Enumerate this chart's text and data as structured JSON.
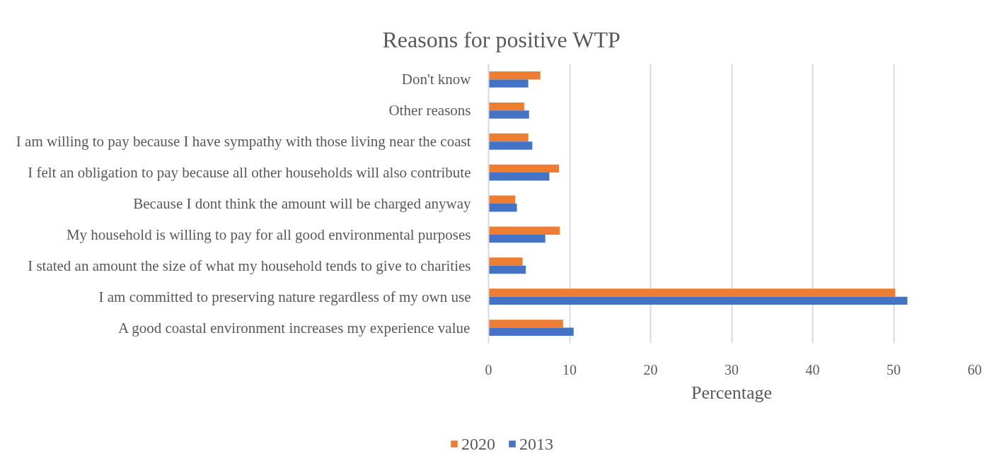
{
  "chart_data": {
    "type": "bar",
    "orientation": "horizontal",
    "title": "Reasons for positive WTP",
    "xlabel": "Percentage",
    "categories": [
      "Don't know",
      "Other reasons",
      "I am willing to pay because I have sympathy with those living near the coast",
      "I felt an obligation to pay because all other households will also contribute",
      "Because I dont think the amount will be charged anyway",
      "My household is willing to pay for all good environmental purposes",
      "I stated an amount the size of what my household tends to give to charities",
      "I am committed to preserving nature regardless of my own use",
      "A good coastal environment increases my experience value"
    ],
    "series": [
      {
        "name": "2020",
        "color": "#ed7d31",
        "values": [
          6.4,
          4.4,
          4.9,
          8.7,
          3.3,
          8.8,
          4.2,
          50.2,
          9.2
        ]
      },
      {
        "name": "2013",
        "color": "#4472c4",
        "values": [
          4.9,
          5.0,
          5.4,
          7.5,
          3.5,
          7.0,
          4.6,
          51.7,
          10.5
        ]
      }
    ],
    "xlim": [
      0,
      60
    ],
    "xticks": [
      0,
      10,
      20,
      30,
      40,
      50,
      60
    ],
    "grid": "x",
    "legend": "bottom"
  }
}
